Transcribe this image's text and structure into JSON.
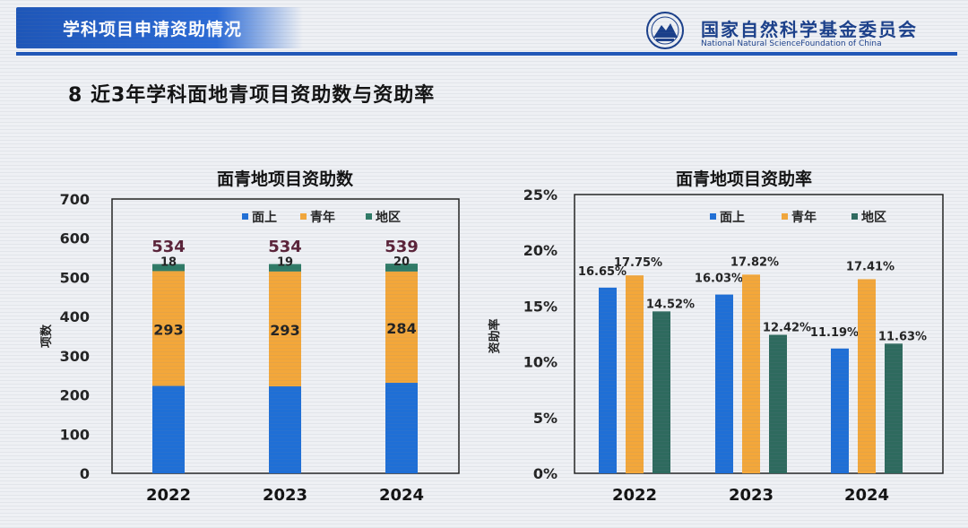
{
  "header": {
    "section_label": "学科项目申请资助情况",
    "org_name_cn": "国家自然科学基金委员会",
    "org_name_en": "National Natural ScienceFoundation of China"
  },
  "slide_title": "8  近3年学科面地青项目资助数与资助率",
  "chart_data": [
    {
      "type": "bar",
      "stacked": true,
      "title": "面青地项目资助数",
      "ylabel": "项数",
      "xlabel": "",
      "categories": [
        "2022",
        "2023",
        "2024"
      ],
      "ylim": [
        0,
        700
      ],
      "yticks": [
        "0",
        "100",
        "200",
        "300",
        "400",
        "500",
        "600",
        "700"
      ],
      "series": [
        {
          "name": "面上",
          "color": "#1f6fd6",
          "values": [
            223,
            222,
            231
          ],
          "labels": [
            "",
            "",
            ""
          ]
        },
        {
          "name": "青年",
          "color": "#f3a73a",
          "values": [
            293,
            293,
            284
          ],
          "labels": [
            "293",
            "293",
            "284"
          ]
        },
        {
          "name": "地区",
          "color": "#2e7a66",
          "values": [
            18,
            19,
            20
          ],
          "labels": [
            "18",
            "19",
            "20"
          ]
        }
      ],
      "totals": [
        "534",
        "534",
        "539"
      ],
      "legend": "top"
    },
    {
      "type": "bar",
      "stacked": false,
      "title": "面青地项目资助率",
      "ylabel": "资助率",
      "xlabel": "",
      "categories": [
        "2022",
        "2023",
        "2024"
      ],
      "ylim": [
        0,
        25
      ],
      "yticks": [
        "0%",
        "5%",
        "10%",
        "15%",
        "20%",
        "25%"
      ],
      "series": [
        {
          "name": "面上",
          "color": "#1f6fd6",
          "values": [
            16.65,
            16.03,
            11.19
          ],
          "labels": [
            "16.65%",
            "16.03%",
            "11.19%"
          ]
        },
        {
          "name": "青年",
          "color": "#f3a73a",
          "values": [
            17.75,
            17.82,
            17.41
          ],
          "labels": [
            "17.75%",
            "17.82%",
            "17.41%"
          ]
        },
        {
          "name": "地区",
          "color": "#2e6a5e",
          "values": [
            14.52,
            12.42,
            11.63
          ],
          "labels": [
            "14.52%",
            "12.42%",
            "11.63%"
          ]
        }
      ],
      "legend": "top"
    }
  ]
}
